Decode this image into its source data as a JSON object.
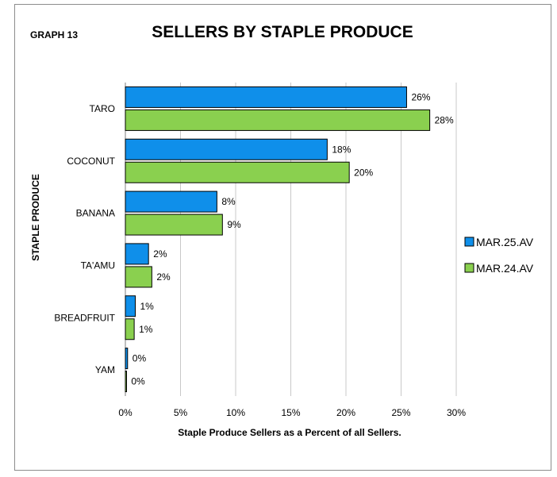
{
  "graph_label": "GRAPH 13",
  "chart_data": {
    "type": "bar",
    "orientation": "horizontal",
    "title": "SELLERS BY STAPLE PRODUCE",
    "xlabel": "Staple Produce Sellers as a Percent of all Sellers.",
    "ylabel": "STAPLE PRODUCE",
    "categories": [
      "TARO",
      "COCONUT",
      "BANANA",
      "TA'AMU",
      "BREADFRUIT",
      "YAM"
    ],
    "xlim": [
      0,
      30
    ],
    "x_ticks": [
      "0%",
      "5%",
      "10%",
      "15%",
      "20%",
      "25%",
      "30%"
    ],
    "grid": true,
    "legend_position": "right",
    "series": [
      {
        "name": "MAR.25.AV",
        "color": "#0f8fea",
        "values": [
          25.5,
          18.3,
          8.3,
          2.1,
          0.9,
          0.2
        ],
        "labels": [
          "26%",
          "18%",
          "8%",
          "2%",
          "1%",
          "0%"
        ]
      },
      {
        "name": "MAR.24.AV",
        "color": "#8ad04f",
        "values": [
          27.6,
          20.3,
          8.8,
          2.4,
          0.8,
          0.1
        ],
        "labels": [
          "28%",
          "20%",
          "9%",
          "2%",
          "1%",
          "0%"
        ]
      }
    ]
  }
}
